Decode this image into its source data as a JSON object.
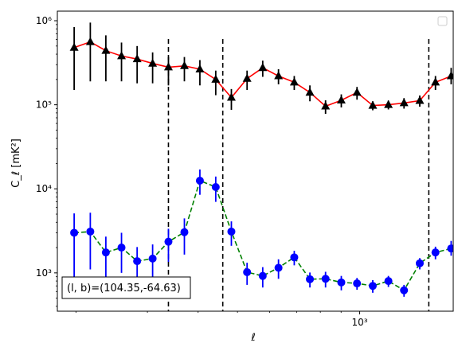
{
  "chart_data": {
    "type": "line",
    "xscale": "log",
    "yscale": "log",
    "xlim": [
      180,
      1700
    ],
    "ylim": [
      350,
      1300000
    ],
    "xlabel": "ℓ",
    "ylabel": "C_ℓ  [mK²]",
    "x_tick_labels": [
      {
        "value": 1000,
        "label": "10³"
      }
    ],
    "y_tick_labels": [
      {
        "value": 1000,
        "label": "10³"
      },
      {
        "value": 10000,
        "label": "10⁴"
      },
      {
        "value": 100000,
        "label": "10⁵"
      },
      {
        "value": 1000000,
        "label": "10⁶"
      }
    ],
    "legend": {
      "position": "top-right",
      "entries": []
    },
    "annotation": {
      "text": "(l, b)=(104.35,-64.63)",
      "position": "bottom-left"
    },
    "vlines": [
      {
        "x": 338,
        "style": "dashed",
        "color": "#000000"
      },
      {
        "x": 460,
        "style": "dashed",
        "color": "#000000"
      },
      {
        "x": 1480,
        "style": "dashed",
        "color": "#000000"
      }
    ],
    "x": [
      198,
      217,
      237,
      259,
      283,
      309,
      338,
      370,
      404,
      442,
      483,
      528,
      577,
      631,
      690,
      754,
      824,
      901,
      985,
      1077,
      1177,
      1286,
      1406,
      1537,
      1680
    ],
    "series": [
      {
        "color": "#ff0000",
        "marker": "triangle",
        "marker_color": "#000000",
        "line_style": "solid",
        "values": [
          480000,
          560000,
          440000,
          380000,
          350000,
          310000,
          280000,
          290000,
          265000,
          200000,
          122000,
          205000,
          275000,
          220000,
          185000,
          140000,
          96000,
          113000,
          140000,
          98000,
          100000,
          105000,
          112000,
          185000,
          220000
        ],
        "err_low": [
          330000,
          370000,
          250000,
          190000,
          170000,
          130000,
          110000,
          100000,
          95000,
          70000,
          35000,
          55000,
          60000,
          45000,
          35000,
          30000,
          18000,
          20000,
          25000,
          12000,
          12000,
          15000,
          17000,
          35000,
          45000
        ],
        "err_high": [
          360000,
          390000,
          230000,
          170000,
          150000,
          110000,
          90000,
          80000,
          75000,
          55000,
          32000,
          50000,
          60000,
          45000,
          35000,
          30000,
          17000,
          20000,
          23000,
          12000,
          12000,
          15000,
          17000,
          35000,
          55000
        ]
      },
      {
        "color": "#008000",
        "marker": "circle",
        "marker_color": "#0000ff",
        "line_style": "dashed",
        "values": [
          3000,
          3100,
          1750,
          2000,
          1380,
          1480,
          2350,
          3050,
          12500,
          10500,
          3100,
          1020,
          920,
          1150,
          1530,
          840,
          850,
          770,
          750,
          700,
          800,
          620,
          1300,
          1750,
          1950
        ],
        "err_low": [
          2100,
          2000,
          950,
          1000,
          650,
          700,
          1000,
          1400,
          4000,
          3500,
          1000,
          300,
          250,
          300,
          300,
          170,
          180,
          150,
          120,
          120,
          120,
          100,
          200,
          300,
          350
        ],
        "err_high": [
          2100,
          2100,
          950,
          1000,
          650,
          700,
          1000,
          1400,
          4500,
          3500,
          1000,
          300,
          250,
          300,
          300,
          170,
          180,
          150,
          120,
          120,
          120,
          100,
          200,
          300,
          450
        ]
      }
    ]
  }
}
